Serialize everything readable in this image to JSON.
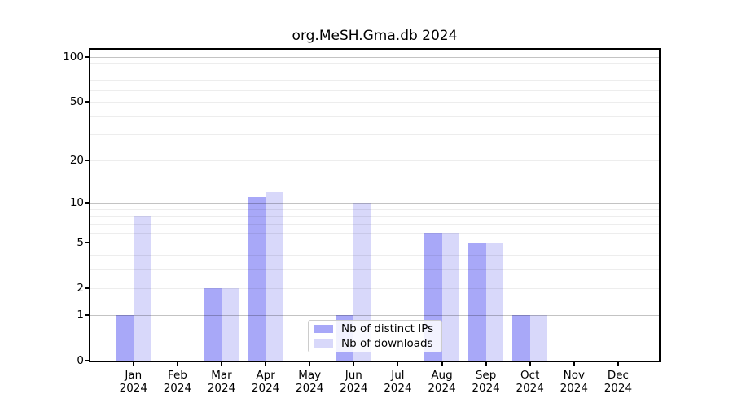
{
  "chart_data": {
    "type": "bar",
    "title": "org.MeSH.Gma.db 2024",
    "year_label": "2024",
    "categories": [
      "Jan",
      "Feb",
      "Mar",
      "Apr",
      "May",
      "Jun",
      "Jul",
      "Aug",
      "Sep",
      "Oct",
      "Nov",
      "Dec"
    ],
    "series": [
      {
        "name": "Nb of distinct IPs",
        "color": "#a8a8f8",
        "values": [
          1,
          0,
          2,
          11,
          0,
          1,
          0,
          6,
          5,
          1,
          0,
          0
        ]
      },
      {
        "name": "Nb of downloads",
        "color": "#d8d8fa",
        "values": [
          8,
          0,
          2,
          12,
          0,
          10,
          0,
          6,
          5,
          1,
          0,
          0
        ]
      }
    ],
    "yscale": "log1p",
    "yticks": [
      100,
      50,
      20,
      10,
      5,
      2,
      1,
      0
    ],
    "ylim": [
      0,
      112
    ],
    "xlabel": "",
    "ylabel": "",
    "grid": "on",
    "legend_position": "inside-bottom-center"
  },
  "colors": {
    "axis": "#000000",
    "grid_major": "#c3c3c3",
    "grid_minor": "#ededed",
    "legend_border": "#cccccc",
    "background": "#ffffff"
  }
}
